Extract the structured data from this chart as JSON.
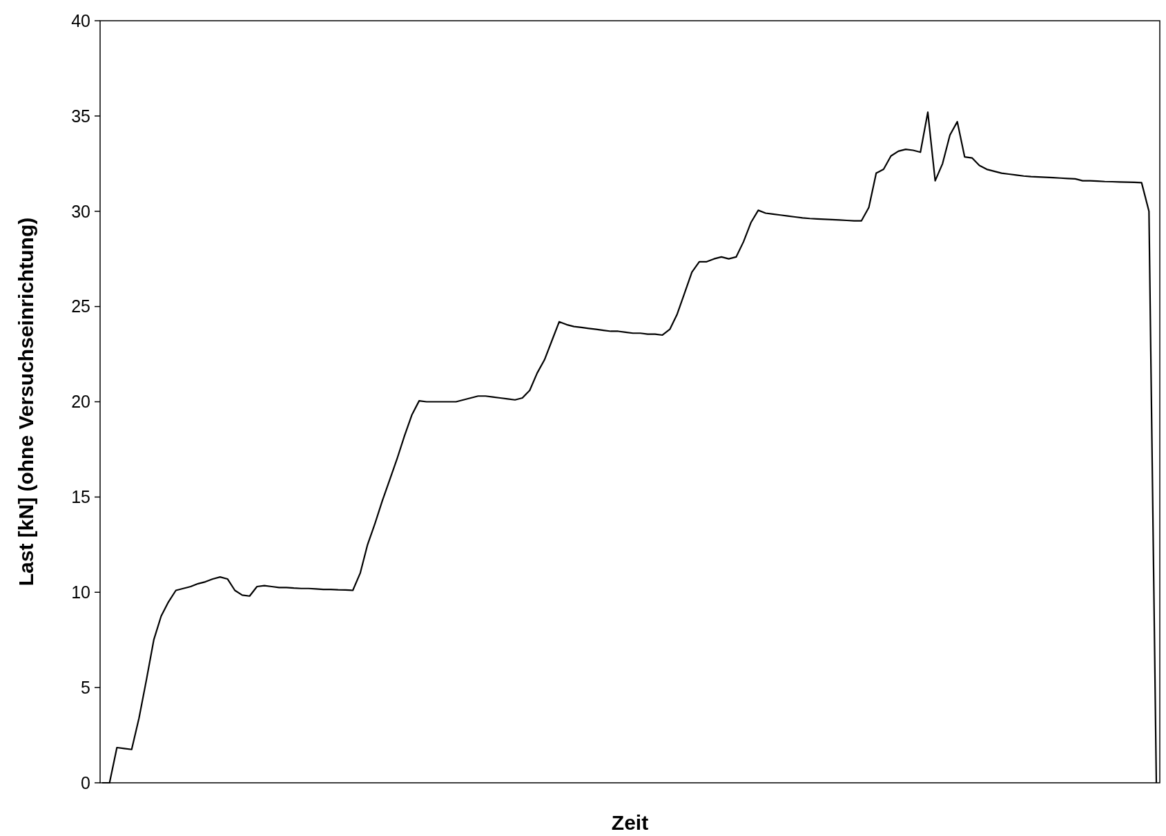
{
  "chart_data": {
    "type": "line",
    "xlabel": "Zeit",
    "ylabel": "Last [kN] (ohne Versuchseinrichtung)",
    "categories": [
      null,
      null,
      null,
      null,
      null,
      null,
      null,
      null,
      null,
      null,
      null,
      null,
      null,
      null,
      null,
      null,
      null,
      null,
      null,
      null,
      null,
      null,
      null,
      null,
      null,
      null,
      null,
      null,
      null,
      null,
      null,
      null,
      null,
      null,
      null,
      null,
      null,
      null,
      null,
      null,
      null,
      null,
      null,
      null,
      null,
      null,
      null,
      null,
      null,
      null,
      null,
      null,
      null,
      null,
      null,
      null,
      null,
      null,
      null,
      null,
      null,
      null,
      null,
      null,
      null,
      null,
      null,
      null,
      null,
      null,
      null,
      null,
      null,
      null,
      null,
      null,
      null,
      null,
      null,
      null,
      null,
      null,
      null,
      null,
      null,
      null,
      null,
      null,
      null,
      null,
      null,
      null,
      null,
      null,
      null,
      null,
      null,
      null,
      null,
      null,
      null,
      null,
      null,
      null,
      null,
      null,
      null,
      null,
      null,
      null,
      null,
      null,
      null,
      null,
      null,
      null,
      null,
      null,
      null,
      null,
      null,
      null,
      null,
      null,
      null,
      null,
      null,
      null,
      null,
      null,
      null,
      null,
      null,
      null,
      null,
      null,
      null,
      null,
      null,
      null,
      null,
      null,
      null,
      null
    ],
    "series": [
      {
        "color": "#000000",
        "values": [
          0,
          0,
          1.85,
          1.8,
          1.75,
          3.4,
          5.4,
          7.5,
          8.75,
          9.5,
          10.1,
          10.2,
          10.3,
          10.45,
          10.55,
          10.7,
          10.8,
          10.7,
          10.1,
          9.85,
          9.8,
          10.3,
          10.35,
          10.3,
          10.25,
          10.25,
          10.22,
          10.2,
          10.2,
          10.18,
          10.15,
          10.15,
          10.13,
          10.12,
          10.1,
          11.0,
          12.5,
          13.6,
          14.8,
          15.9,
          17.0,
          18.2,
          19.3,
          20.05,
          20.0,
          20.0,
          20.0,
          20.0,
          20.0,
          20.1,
          20.2,
          20.3,
          20.3,
          20.25,
          20.2,
          20.15,
          20.1,
          20.2,
          20.6,
          21.5,
          22.2,
          23.2,
          24.2,
          24.05,
          23.95,
          23.9,
          23.85,
          23.8,
          23.75,
          23.7,
          23.7,
          23.65,
          23.6,
          23.6,
          23.55,
          23.55,
          23.5,
          23.8,
          24.6,
          25.7,
          26.8,
          27.35,
          27.35,
          27.5,
          27.6,
          27.5,
          27.6,
          28.4,
          29.4,
          30.05,
          29.9,
          29.85,
          29.8,
          29.75,
          29.7,
          29.65,
          29.62,
          29.6,
          29.58,
          29.56,
          29.54,
          29.52,
          29.5,
          29.5,
          30.2,
          32.0,
          32.2,
          32.9,
          33.15,
          33.25,
          33.2,
          33.1,
          35.2,
          31.6,
          32.5,
          34.0,
          34.7,
          32.85,
          32.8,
          32.4,
          32.2,
          32.1,
          32.0,
          31.95,
          31.9,
          31.85,
          31.82,
          31.8,
          31.78,
          31.76,
          31.74,
          31.72,
          31.7,
          31.6,
          31.6,
          31.58,
          31.56,
          31.55,
          31.54,
          31.53,
          31.52,
          31.5,
          30.0,
          0
        ]
      }
    ],
    "ylim": [
      0,
      40
    ],
    "yticks": [
      0,
      5,
      10,
      15,
      20,
      25,
      30,
      35,
      40
    ],
    "grid": false,
    "tick_labels": "y",
    "marker": "none",
    "line_style": "solid"
  }
}
